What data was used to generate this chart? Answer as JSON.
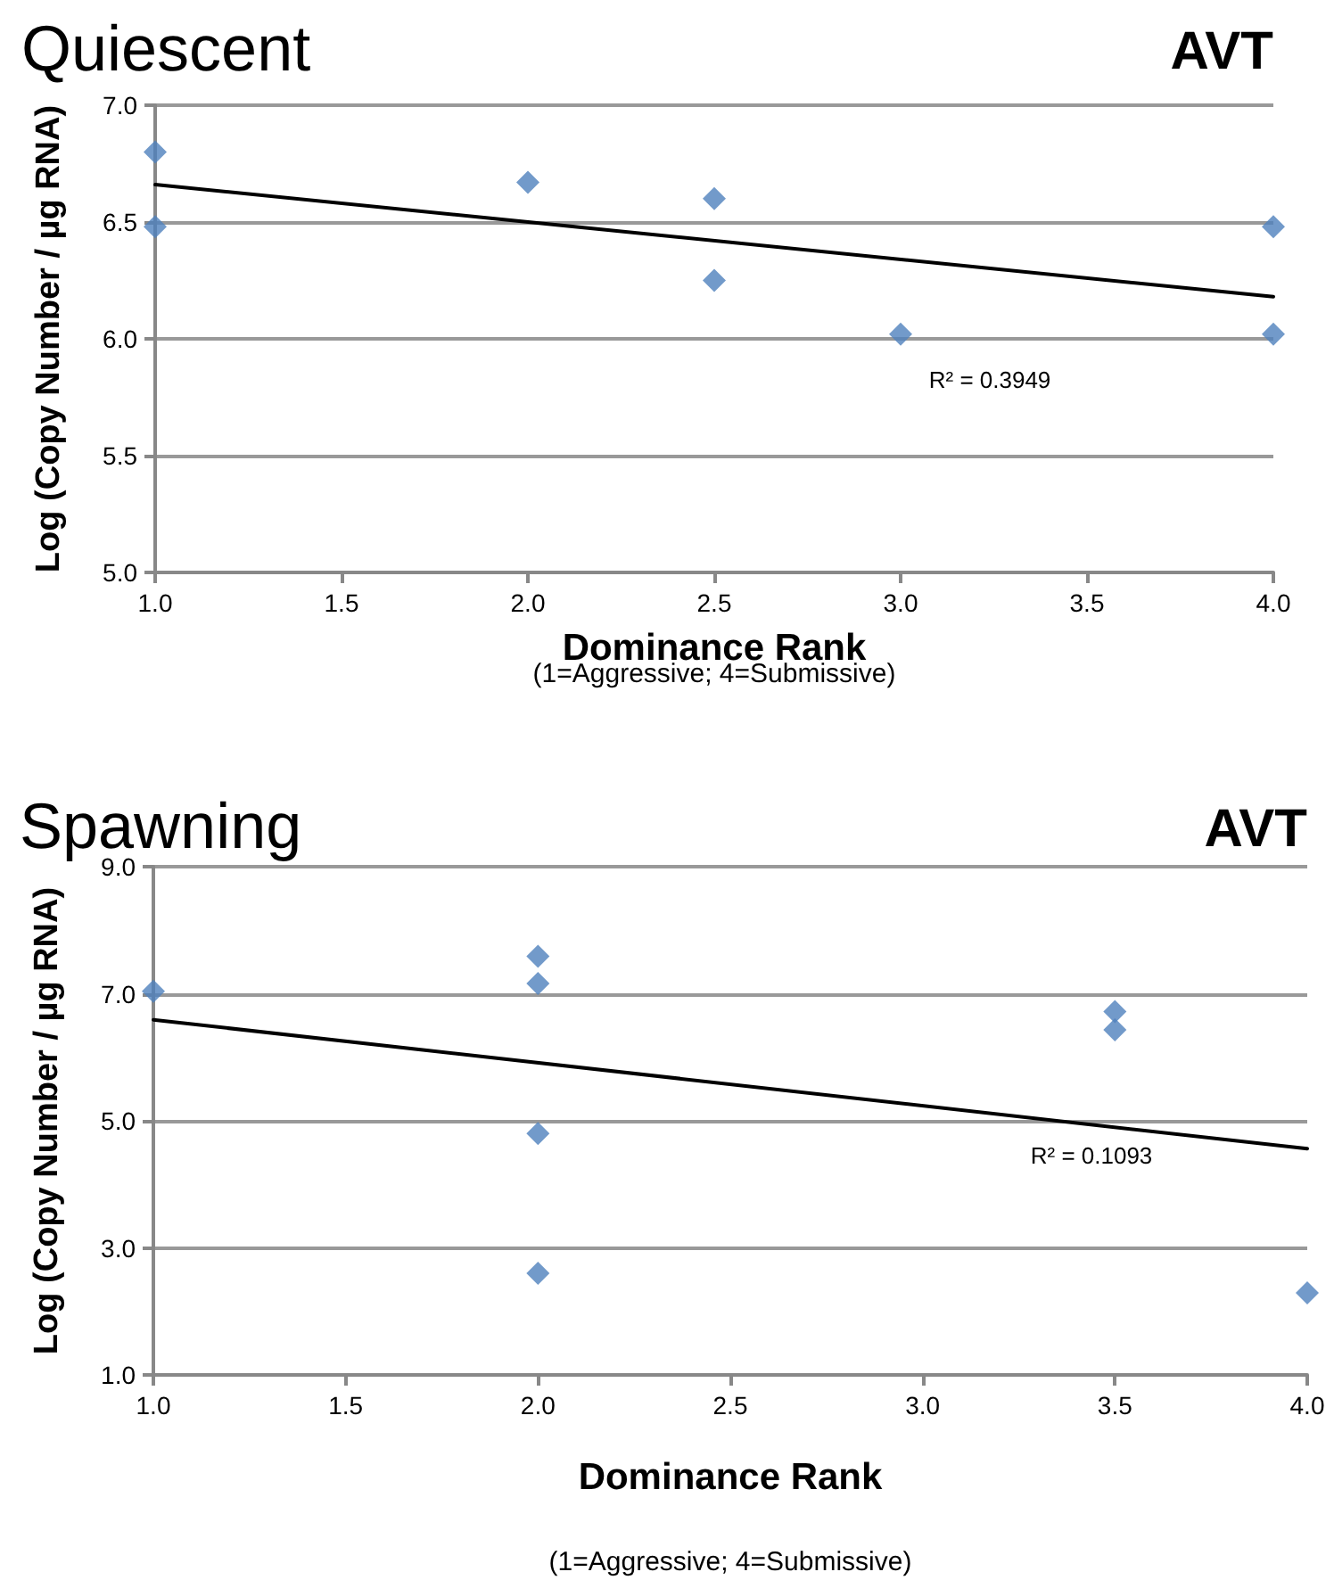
{
  "chart_data": [
    {
      "type": "scatter",
      "title": "Quiescent",
      "xlabel": "Dominance Rank",
      "ylabel": "Log (Copy Number / µg RNA)",
      "series": [
        {
          "color": "#4f81bd",
          "marker": "diamond",
          "x": [
            1.0,
            1.0,
            2.0,
            2.5,
            2.5,
            3.0,
            4.0,
            4.0
          ],
          "values": [
            6.8,
            6.48,
            6.67,
            6.6,
            6.25,
            6.02,
            6.48,
            6.02
          ]
        },
        {
          "type": "line",
          "color": "#000000",
          "marker": "none",
          "x": [
            1.0,
            4.0
          ],
          "values": [
            6.66,
            6.18
          ]
        }
      ],
      "xlim": [
        1.0,
        4.0
      ],
      "ylim": [
        5.0,
        7.0
      ],
      "xticks": [
        {
          "value": 1,
          "label": "1.0"
        },
        {
          "value": 1.5,
          "label": "1.5"
        },
        {
          "value": 2,
          "label": "2.0"
        },
        {
          "value": 2.5,
          "label": "2.5"
        },
        {
          "value": 3,
          "label": "3.0"
        },
        {
          "value": 3.5,
          "label": "3.5"
        },
        {
          "value": 4,
          "label": "4.0"
        }
      ],
      "yticks": [
        {
          "value": 5,
          "label": "5.0"
        },
        {
          "value": 5.5,
          "label": "5.5"
        },
        {
          "value": 6,
          "label": "6.0"
        },
        {
          "value": 6.5,
          "label": "6.5"
        },
        {
          "value": 7,
          "label": "7.0"
        }
      ],
      "grid": "y",
      "annotations": [
        "AVT",
        "(1=Aggressive; 4=Submissive)",
        "R² = 0.3949"
      ]
    },
    {
      "type": "scatter",
      "title": "Spawning",
      "xlabel": "Dominance Rank",
      "ylabel": "Log (Copy Number / µg RNA)",
      "series": [
        {
          "color": "#4f81bd",
          "marker": "diamond",
          "x": [
            1.0,
            2.0,
            2.0,
            2.0,
            2.0,
            3.5,
            3.5,
            4.0
          ],
          "values": [
            7.04,
            7.59,
            7.16,
            4.8,
            2.6,
            6.72,
            6.43,
            2.29
          ]
        },
        {
          "type": "line",
          "color": "#000000",
          "marker": "none",
          "x": [
            1.0,
            4.0
          ],
          "values": [
            6.59,
            4.56
          ]
        }
      ],
      "xlim": [
        1.0,
        4.0
      ],
      "ylim": [
        1.0,
        9.0
      ],
      "xticks": [
        {
          "value": 1,
          "label": "1.0"
        },
        {
          "value": 1.5,
          "label": "1.5"
        },
        {
          "value": 2,
          "label": "2.0"
        },
        {
          "value": 2.5,
          "label": "2.5"
        },
        {
          "value": 3,
          "label": "3.0"
        },
        {
          "value": 3.5,
          "label": "3.5"
        },
        {
          "value": 4,
          "label": "4.0"
        }
      ],
      "yticks": [
        {
          "value": 1,
          "label": "1.0"
        },
        {
          "value": 3,
          "label": "3.0"
        },
        {
          "value": 5,
          "label": "5.0"
        },
        {
          "value": 7,
          "label": "7.0"
        },
        {
          "value": 9,
          "label": "9.0"
        }
      ],
      "grid": "y",
      "annotations": [
        "AVT",
        "(1=Aggressive; 4=Submissive)",
        "R² = 0.1093"
      ]
    }
  ]
}
